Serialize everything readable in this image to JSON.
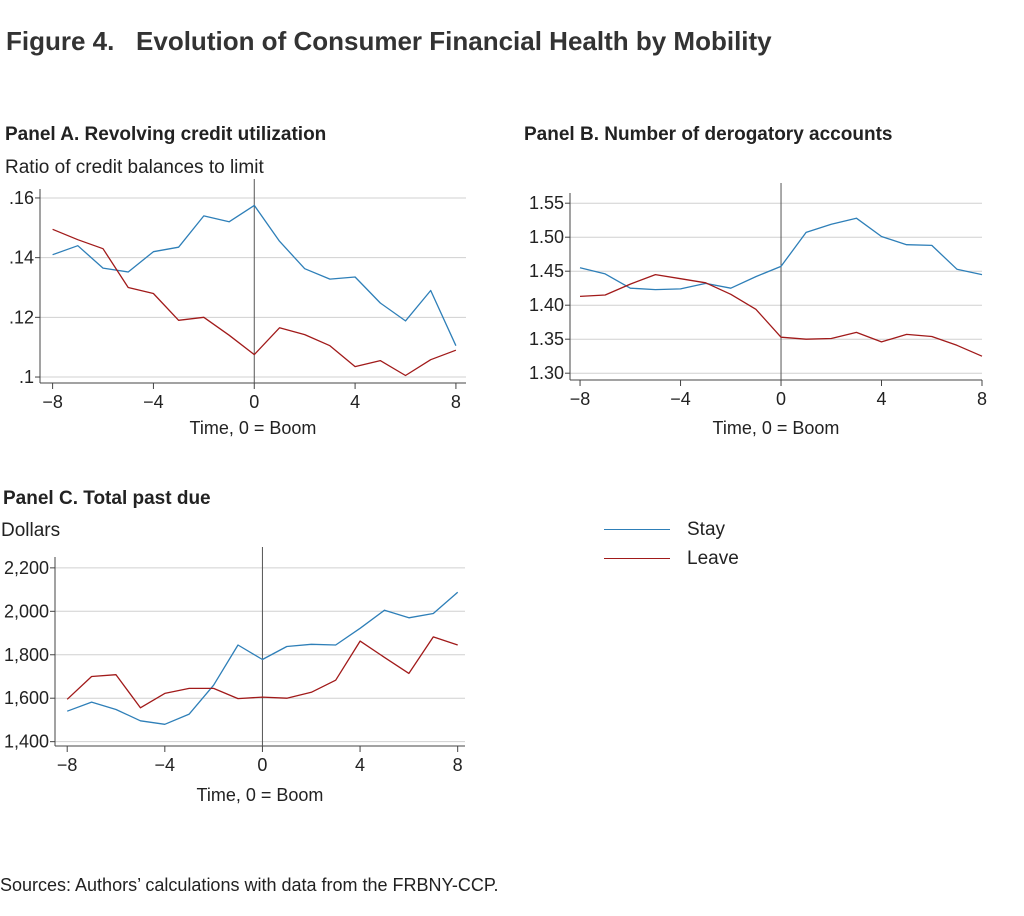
{
  "figure": {
    "title": "Figure 4.   Evolution of Consumer Financial Health by Mobility",
    "source": "Sources: Authors’ calculations with data from the FRBNY-CCP."
  },
  "legend": [
    {
      "name": "Stay",
      "color": "#2e7fb8"
    },
    {
      "name": "Leave",
      "color": "#a11a1a"
    }
  ],
  "panels": {
    "a": {
      "title": "Panel A. Revolving credit utilization",
      "unit": "Ratio of credit balances to limit"
    },
    "b": {
      "title": "Panel B. Number of derogatory accounts",
      "unit": ""
    },
    "c": {
      "title": "Panel C. Total past due",
      "unit": "Dollars"
    }
  },
  "chart_data": [
    {
      "type": "line",
      "title": "Panel A. Revolving credit utilization",
      "ylabel": "Ratio of credit balances to limit",
      "xlabel": "Time, 0 = Boom",
      "x": [
        -8,
        -7,
        -6,
        -5,
        -4,
        -3,
        -2,
        -1,
        0,
        1,
        2,
        3,
        4,
        5,
        6,
        7,
        8
      ],
      "xticks": [
        -8,
        -4,
        0,
        4,
        8
      ],
      "xtick_labels": [
        "−8",
        "−4",
        "0",
        "4",
        "8"
      ],
      "xlim": [
        -8.5,
        8.4
      ],
      "ylim": [
        0.098,
        0.163
      ],
      "yticks": [
        0.1,
        0.12,
        0.14,
        0.16
      ],
      "ytick_labels": [
        ".1",
        ".12",
        ".14",
        ".16"
      ],
      "grid": true,
      "vline_x": 0,
      "series": [
        {
          "name": "Stay",
          "color": "#2e7fb8",
          "values": [
            0.141,
            0.144,
            0.1365,
            0.1352,
            0.142,
            0.1435,
            0.154,
            0.152,
            0.1575,
            0.1455,
            0.1363,
            0.1328,
            0.1335,
            0.1248,
            0.1188,
            0.129,
            0.1105
          ]
        },
        {
          "name": "Leave",
          "color": "#a11a1a",
          "values": [
            0.1495,
            0.146,
            0.143,
            0.13,
            0.128,
            0.119,
            0.12,
            0.114,
            0.1075,
            0.1165,
            0.1142,
            0.1105,
            0.1035,
            0.1055,
            0.1005,
            0.1058,
            0.109
          ]
        }
      ]
    },
    {
      "type": "line",
      "title": "Panel B. Number of derogatory accounts",
      "ylabel": "",
      "xlabel": "Time, 0 = Boom",
      "x": [
        -8,
        -7,
        -6,
        -5,
        -4,
        -3,
        -2,
        -1,
        0,
        1,
        2,
        3,
        4,
        5,
        6,
        7,
        8
      ],
      "xticks": [
        -8,
        -4,
        0,
        4,
        8
      ],
      "xtick_labels": [
        "−8",
        "−4",
        "0",
        "4",
        "8"
      ],
      "xlim": [
        -8.4,
        8
      ],
      "ylim": [
        1.29,
        1.565
      ],
      "yticks": [
        1.3,
        1.35,
        1.4,
        1.45,
        1.5,
        1.55
      ],
      "ytick_labels": [
        "1.30",
        "1.35",
        "1.40",
        "1.45",
        "1.50",
        "1.55"
      ],
      "grid": true,
      "vline_x": 0,
      "series": [
        {
          "name": "Stay",
          "color": "#2e7fb8",
          "values": [
            1.455,
            1.446,
            1.425,
            1.423,
            1.424,
            1.432,
            1.425,
            1.442,
            1.457,
            1.507,
            1.519,
            1.528,
            1.501,
            1.489,
            1.488,
            1.453,
            1.445
          ]
        },
        {
          "name": "Leave",
          "color": "#a11a1a",
          "values": [
            1.413,
            1.415,
            1.431,
            1.445,
            1.439,
            1.433,
            1.416,
            1.394,
            1.353,
            1.35,
            1.351,
            1.36,
            1.346,
            1.357,
            1.354,
            1.341,
            1.325
          ]
        }
      ]
    },
    {
      "type": "line",
      "title": "Panel C. Total past due",
      "ylabel": "Dollars",
      "xlabel": "Time, 0 = Boom",
      "x": [
        -8,
        -7,
        -6,
        -5,
        -4,
        -3,
        -2,
        -1,
        0,
        1,
        2,
        3,
        4,
        5,
        6,
        7,
        8
      ],
      "xticks": [
        -8,
        -4,
        0,
        4,
        8
      ],
      "xtick_labels": [
        "−8",
        "−4",
        "0",
        "4",
        "8"
      ],
      "xlim": [
        -8.5,
        8.3
      ],
      "ylim": [
        1380,
        2250
      ],
      "yticks": [
        1400,
        1600,
        1800,
        2000,
        2200
      ],
      "ytick_labels": [
        "1,400",
        "1,600",
        "1,800",
        "2,000",
        "2,200"
      ],
      "grid": true,
      "vline_x": 0,
      "series": [
        {
          "name": "Stay",
          "color": "#2e7fb8",
          "values": [
            1540,
            1582,
            1548,
            1496,
            1480,
            1527,
            1660,
            1845,
            1778,
            1838,
            1848,
            1845,
            1922,
            2005,
            1970,
            1990,
            2088
          ]
        },
        {
          "name": "Leave",
          "color": "#a11a1a",
          "values": [
            1595,
            1700,
            1708,
            1556,
            1622,
            1645,
            1645,
            1598,
            1605,
            1600,
            1627,
            1683,
            1863,
            1788,
            1714,
            1882,
            1845
          ]
        }
      ]
    }
  ]
}
